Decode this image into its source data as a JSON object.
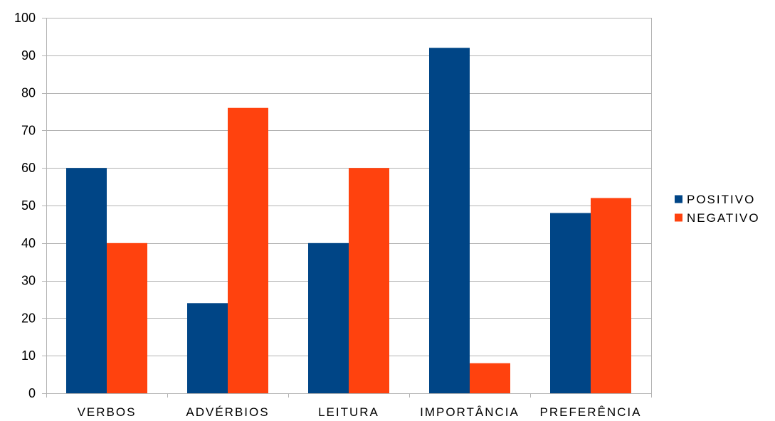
{
  "chart_data": {
    "type": "bar",
    "categories": [
      "VERBOS",
      "ADVÉRBIOS",
      "LEITURA",
      "IMPORTÂNCIA",
      "PREFERÊNCIA"
    ],
    "series": [
      {
        "name": "POSITIVO",
        "values": [
          60,
          24,
          40,
          92,
          48
        ],
        "color": "#004586"
      },
      {
        "name": "NEGATIVO",
        "values": [
          40,
          76,
          60,
          8,
          52
        ],
        "color": "#ff420e"
      }
    ],
    "title": "",
    "xlabel": "",
    "ylabel": "",
    "ylim": [
      0,
      100
    ],
    "yticks": [
      0,
      10,
      20,
      30,
      40,
      50,
      60,
      70,
      80,
      90,
      100
    ],
    "grid": true,
    "legend_position": "right"
  }
}
